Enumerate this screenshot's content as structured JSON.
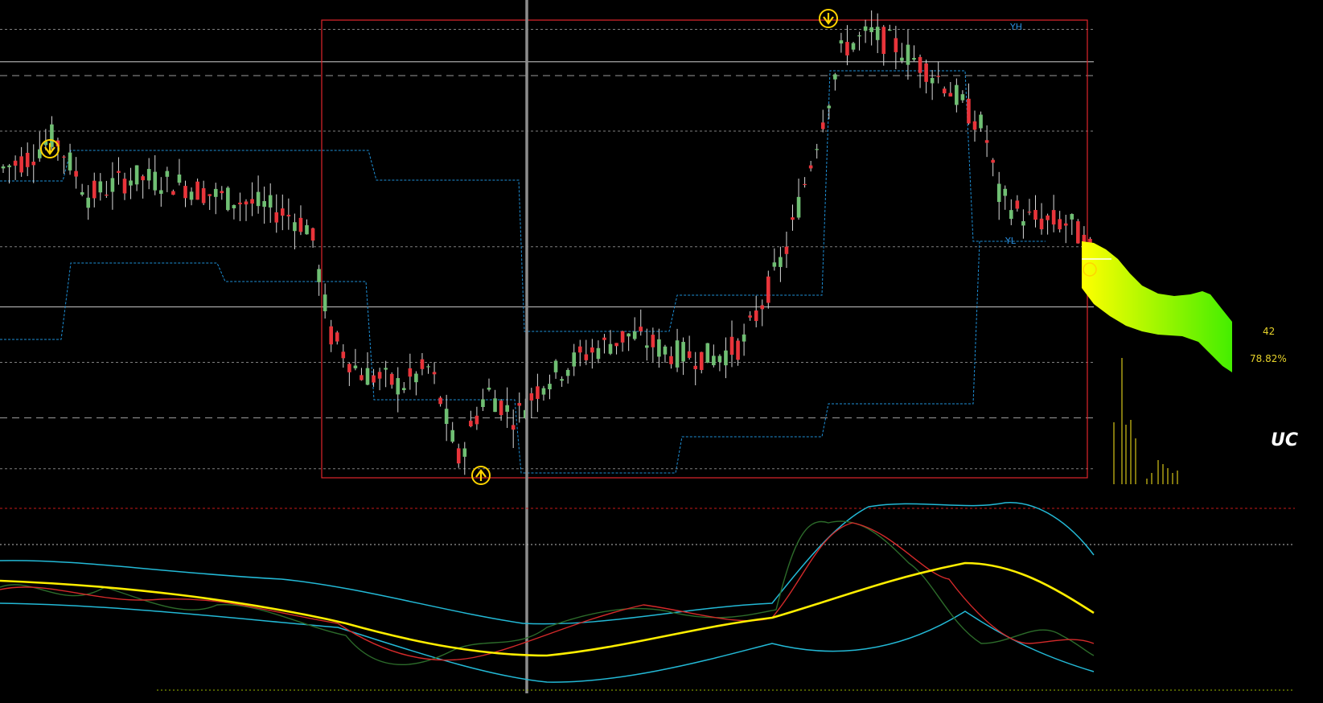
{
  "window": {
    "background": "#000000"
  },
  "labels": {
    "yh": "YH",
    "yl": "YL",
    "count": "42",
    "percent": "78.82%",
    "uc": "UC"
  },
  "colors": {
    "bull": "#6fbf73",
    "bear": "#e8343a",
    "wick": "#d9d9d9",
    "frame": "#e0262b",
    "channel": "#1e8fd6",
    "grid_dotted": "#7f7f7f",
    "grid_dashed": "#9a9a9a",
    "level_solid": "#a8a8a8",
    "cursor": "#8c8c8c",
    "arrow": "#ffd400",
    "label_blue": "#2a8fe0",
    "label_yellow": "#e6d22a",
    "volume": "#d6c419",
    "osc_cyan": "#23b9d6",
    "osc_red": "#d42a2a",
    "osc_green": "#2c6b2a",
    "osc_yellow": "#ffee00",
    "osc_redline": "#c61a1a",
    "osc_bottomline": "#9ab800"
  },
  "icons": {
    "top_signal": "sell-arrow-icon",
    "bottom_signal": "buy-arrow-icon",
    "peak_signal": "sell-arrow-icon"
  },
  "chart_data": {
    "type": "candlestick",
    "grid": true,
    "price_range": [
      0,
      100
    ],
    "levels": {
      "dotted": [
        98,
        76,
        51,
        26,
        3
      ],
      "dashed": [
        88,
        14
      ],
      "solid": [
        91,
        38
      ]
    },
    "frame_range": {
      "from_index": 105,
      "to_index": 355,
      "low": 0,
      "high": 100
    },
    "yh_level": 100,
    "yl_level": 55,
    "candles_count": 180,
    "oscillator_range": [
      0,
      100
    ],
    "oscillator_levels": {
      "dashed_red": 100,
      "dotted_grey": 82,
      "bottom_dotted": 2
    },
    "volume_note": "right-side histogram",
    "forecast": {
      "count": 42,
      "percent": 78.82
    }
  }
}
